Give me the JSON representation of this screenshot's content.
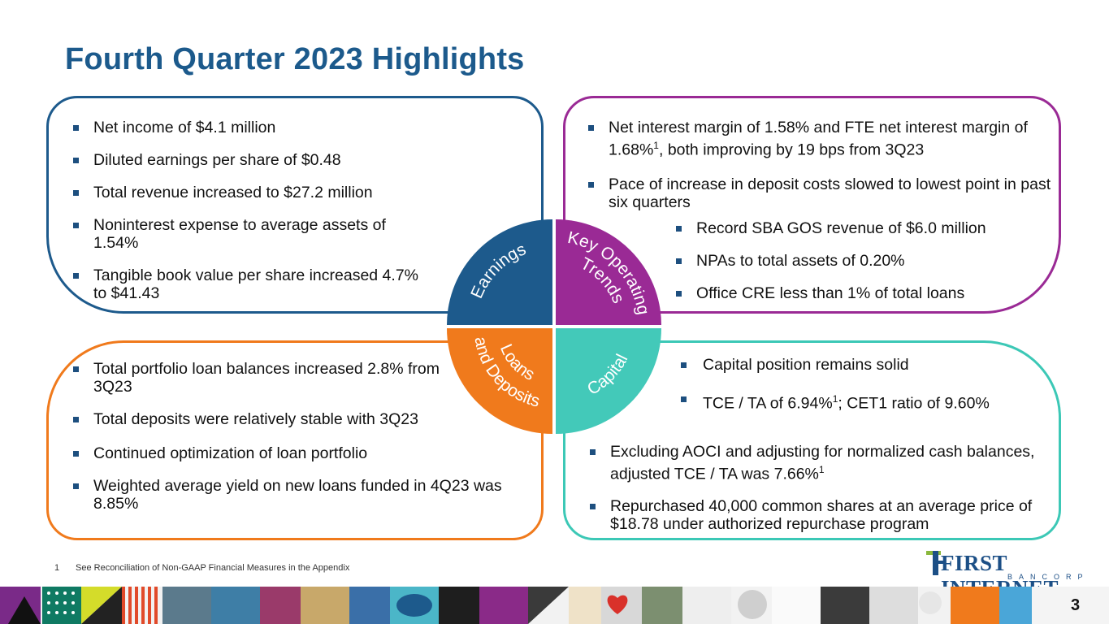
{
  "title": "Fourth Quarter 2023 Highlights",
  "quadrants": {
    "earnings": "Earnings",
    "trends_line1": "Key Operating",
    "trends_line2": "Trends",
    "loans_line1": "Loans",
    "loans_line2": "and Deposits",
    "capital": "Capital"
  },
  "earnings_items": [
    "Net income of $4.1 million",
    "Diluted earnings per share of $0.48",
    "Total revenue increased to $27.2 million",
    "Noninterest expense to average assets of 1.54%",
    "Tangible book value per share increased 4.7% to $41.43"
  ],
  "trends_items": [
    {
      "pre": "Net interest margin of 1.58% and FTE net interest margin of 1.68%",
      "sup": "1",
      "post": ", both improving by 19 bps from 3Q23"
    },
    {
      "pre": "Pace of increase in deposit costs slowed to lowest point in past six quarters"
    }
  ],
  "trends_items2": [
    "Record SBA GOS revenue of $6.0 million",
    "NPAs to total assets of 0.20%",
    "Office CRE less than 1% of total loans"
  ],
  "loans_items": [
    "Total portfolio loan balances increased 2.8% from 3Q23",
    "Total deposits were relatively stable with 3Q23",
    "Continued optimization of loan portfolio",
    "Weighted average yield on new loans funded in 4Q23 was 8.85%"
  ],
  "capital_items": [
    {
      "pre": "Capital position remains solid"
    },
    {
      "pre": "TCE / TA of 6.94%",
      "sup": "1",
      "post": "; CET1 ratio of 9.60%"
    }
  ],
  "capital_items2": [
    {
      "pre": "Excluding AOCI and adjusting for normalized cash balances, adjusted TCE / TA was 7.66%",
      "sup": "1",
      "post": ""
    },
    {
      "pre": "Repurchased 40,000 common shares at an average price of $18.78 under authorized repurchase program"
    }
  ],
  "footnote": {
    "num": "1",
    "text": "See Reconciliation of Non-GAAP Financial Measures in the Appendix"
  },
  "logo": {
    "main": "FIRST INTERNET",
    "sub": "BANCORP"
  },
  "page_number": "3",
  "colors": {
    "blue": "#1d5a8c",
    "purple": "#9a2a95",
    "orange": "#f07a1c",
    "teal": "#43c9b9"
  }
}
